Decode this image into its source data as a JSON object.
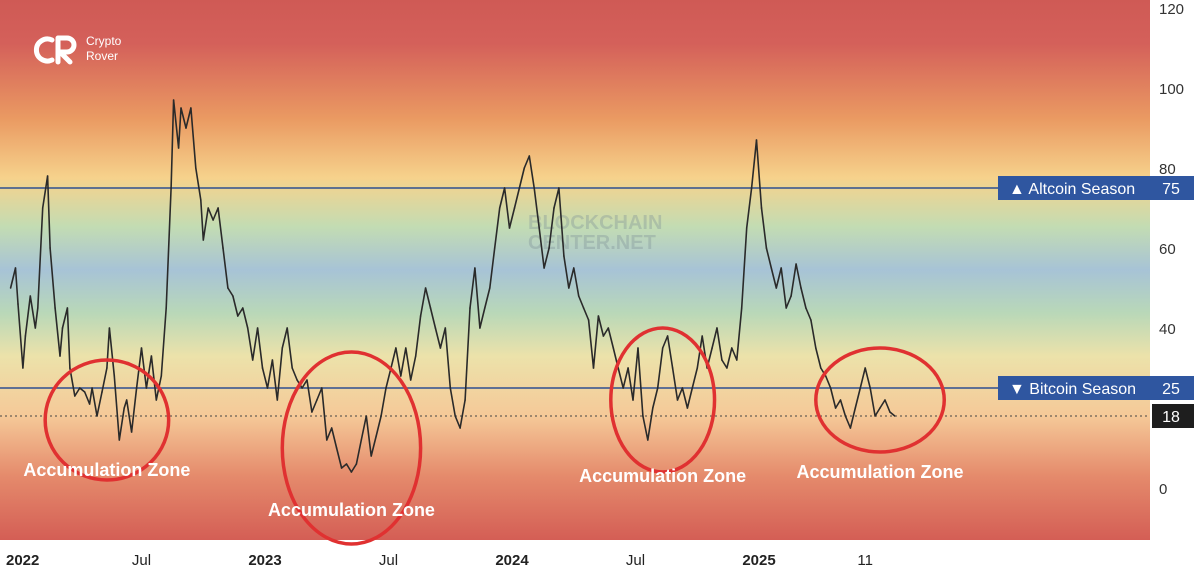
{
  "brand": {
    "line1": "Crypto",
    "line2": "Rover"
  },
  "watermark": {
    "line1": "BLOCKCHAIN",
    "line2": "CENTER.NET"
  },
  "chart_data": {
    "type": "line",
    "title": "",
    "xlabel": "",
    "ylabel": "",
    "ylim": [
      -12,
      120
    ],
    "yticks": [
      0,
      20,
      40,
      60,
      80,
      100,
      120
    ],
    "ytick_labels": [
      "0",
      "",
      "40",
      "60",
      "80",
      "100",
      "120"
    ],
    "x_tick_labels": [
      {
        "t": 2022.0,
        "label": "2022",
        "bold": true
      },
      {
        "t": 2022.5,
        "label": "Jul",
        "bold": false
      },
      {
        "t": 2023.0,
        "label": "2023",
        "bold": true
      },
      {
        "t": 2023.5,
        "label": "Jul",
        "bold": false
      },
      {
        "t": 2024.0,
        "label": "2024",
        "bold": true
      },
      {
        "t": 2024.5,
        "label": "Jul",
        "bold": false
      },
      {
        "t": 2025.0,
        "label": "2025",
        "bold": true
      },
      {
        "t": 2025.43,
        "label": "11",
        "bold": false
      }
    ],
    "series": [
      {
        "values": [
          [
            2021.97,
            50
          ],
          [
            2021.99,
            55
          ],
          [
            2022.0,
            46
          ],
          [
            2022.02,
            30
          ],
          [
            2022.03,
            38
          ],
          [
            2022.05,
            48
          ],
          [
            2022.07,
            40
          ],
          [
            2022.08,
            45
          ],
          [
            2022.1,
            70
          ],
          [
            2022.12,
            78
          ],
          [
            2022.13,
            60
          ],
          [
            2022.15,
            45
          ],
          [
            2022.17,
            33
          ],
          [
            2022.18,
            40
          ],
          [
            2022.2,
            45
          ],
          [
            2022.21,
            30
          ],
          [
            2022.23,
            23
          ],
          [
            2022.25,
            25
          ],
          [
            2022.27,
            24
          ],
          [
            2022.29,
            21
          ],
          [
            2022.3,
            25
          ],
          [
            2022.32,
            18
          ],
          [
            2022.34,
            24
          ],
          [
            2022.36,
            30
          ],
          [
            2022.37,
            40
          ],
          [
            2022.39,
            28
          ],
          [
            2022.41,
            12
          ],
          [
            2022.43,
            20
          ],
          [
            2022.44,
            22
          ],
          [
            2022.46,
            14
          ],
          [
            2022.48,
            25
          ],
          [
            2022.5,
            35
          ],
          [
            2022.52,
            25
          ],
          [
            2022.54,
            33
          ],
          [
            2022.56,
            22
          ],
          [
            2022.58,
            28
          ],
          [
            2022.6,
            45
          ],
          [
            2022.62,
            75
          ],
          [
            2022.63,
            97
          ],
          [
            2022.65,
            85
          ],
          [
            2022.66,
            95
          ],
          [
            2022.68,
            90
          ],
          [
            2022.7,
            95
          ],
          [
            2022.72,
            80
          ],
          [
            2022.74,
            72
          ],
          [
            2022.75,
            62
          ],
          [
            2022.77,
            70
          ],
          [
            2022.79,
            67
          ],
          [
            2022.81,
            70
          ],
          [
            2022.83,
            60
          ],
          [
            2022.85,
            50
          ],
          [
            2022.87,
            48
          ],
          [
            2022.89,
            43
          ],
          [
            2022.91,
            45
          ],
          [
            2022.93,
            40
          ],
          [
            2022.95,
            32
          ],
          [
            2022.97,
            40
          ],
          [
            2022.99,
            30
          ],
          [
            2023.01,
            25
          ],
          [
            2023.03,
            32
          ],
          [
            2023.05,
            22
          ],
          [
            2023.07,
            35
          ],
          [
            2023.09,
            40
          ],
          [
            2023.11,
            30
          ],
          [
            2023.13,
            27
          ],
          [
            2023.15,
            25
          ],
          [
            2023.17,
            27
          ],
          [
            2023.19,
            19
          ],
          [
            2023.21,
            22
          ],
          [
            2023.23,
            25
          ],
          [
            2023.25,
            12
          ],
          [
            2023.27,
            15
          ],
          [
            2023.29,
            10
          ],
          [
            2023.31,
            5
          ],
          [
            2023.33,
            6
          ],
          [
            2023.35,
            4
          ],
          [
            2023.37,
            6
          ],
          [
            2023.39,
            12
          ],
          [
            2023.41,
            18
          ],
          [
            2023.43,
            8
          ],
          [
            2023.45,
            13
          ],
          [
            2023.47,
            18
          ],
          [
            2023.49,
            25
          ],
          [
            2023.51,
            30
          ],
          [
            2023.53,
            35
          ],
          [
            2023.55,
            28
          ],
          [
            2023.57,
            35
          ],
          [
            2023.59,
            27
          ],
          [
            2023.61,
            33
          ],
          [
            2023.63,
            43
          ],
          [
            2023.65,
            50
          ],
          [
            2023.67,
            45
          ],
          [
            2023.69,
            40
          ],
          [
            2023.71,
            35
          ],
          [
            2023.73,
            40
          ],
          [
            2023.75,
            25
          ],
          [
            2023.77,
            18
          ],
          [
            2023.79,
            15
          ],
          [
            2023.81,
            22
          ],
          [
            2023.83,
            45
          ],
          [
            2023.85,
            55
          ],
          [
            2023.87,
            40
          ],
          [
            2023.89,
            45
          ],
          [
            2023.91,
            50
          ],
          [
            2023.93,
            60
          ],
          [
            2023.95,
            70
          ],
          [
            2023.97,
            75
          ],
          [
            2023.99,
            65
          ],
          [
            2024.01,
            70
          ],
          [
            2024.03,
            75
          ],
          [
            2024.05,
            80
          ],
          [
            2024.07,
            83
          ],
          [
            2024.09,
            75
          ],
          [
            2024.11,
            65
          ],
          [
            2024.13,
            55
          ],
          [
            2024.15,
            60
          ],
          [
            2024.17,
            70
          ],
          [
            2024.19,
            75
          ],
          [
            2024.21,
            58
          ],
          [
            2024.23,
            50
          ],
          [
            2024.25,
            55
          ],
          [
            2024.27,
            48
          ],
          [
            2024.29,
            45
          ],
          [
            2024.31,
            42
          ],
          [
            2024.33,
            30
          ],
          [
            2024.35,
            43
          ],
          [
            2024.37,
            38
          ],
          [
            2024.39,
            40
          ],
          [
            2024.41,
            35
          ],
          [
            2024.43,
            30
          ],
          [
            2024.45,
            25
          ],
          [
            2024.47,
            30
          ],
          [
            2024.49,
            22
          ],
          [
            2024.51,
            35
          ],
          [
            2024.53,
            18
          ],
          [
            2024.55,
            12
          ],
          [
            2024.57,
            20
          ],
          [
            2024.59,
            25
          ],
          [
            2024.61,
            35
          ],
          [
            2024.63,
            38
          ],
          [
            2024.65,
            30
          ],
          [
            2024.67,
            22
          ],
          [
            2024.69,
            25
          ],
          [
            2024.71,
            20
          ],
          [
            2024.73,
            25
          ],
          [
            2024.75,
            30
          ],
          [
            2024.77,
            38
          ],
          [
            2024.79,
            30
          ],
          [
            2024.81,
            35
          ],
          [
            2024.83,
            40
          ],
          [
            2024.85,
            32
          ],
          [
            2024.87,
            30
          ],
          [
            2024.89,
            35
          ],
          [
            2024.91,
            32
          ],
          [
            2024.93,
            45
          ],
          [
            2024.95,
            65
          ],
          [
            2024.97,
            75
          ],
          [
            2024.99,
            87
          ],
          [
            2025.01,
            70
          ],
          [
            2025.03,
            60
          ],
          [
            2025.05,
            55
          ],
          [
            2025.07,
            50
          ],
          [
            2025.09,
            55
          ],
          [
            2025.11,
            45
          ],
          [
            2025.13,
            48
          ],
          [
            2025.15,
            56
          ],
          [
            2025.17,
            50
          ],
          [
            2025.19,
            45
          ],
          [
            2025.21,
            42
          ],
          [
            2025.23,
            35
          ],
          [
            2025.25,
            30
          ],
          [
            2025.27,
            28
          ],
          [
            2025.29,
            25
          ],
          [
            2025.31,
            20
          ],
          [
            2025.33,
            22
          ],
          [
            2025.35,
            18
          ],
          [
            2025.37,
            15
          ],
          [
            2025.39,
            20
          ],
          [
            2025.41,
            25
          ],
          [
            2025.43,
            30
          ],
          [
            2025.45,
            25
          ],
          [
            2025.47,
            18
          ],
          [
            2025.49,
            20
          ],
          [
            2025.51,
            22
          ],
          [
            2025.53,
            19
          ],
          [
            2025.55,
            18
          ]
        ]
      }
    ],
    "reference_lines": [
      {
        "y": 75,
        "arrow": "▲",
        "label": "Altcoin Season",
        "value": "75"
      },
      {
        "y": 25,
        "arrow": "▼",
        "label": "Bitcoin Season",
        "value": "25"
      }
    ],
    "current_value": {
      "y": 18,
      "label": "18"
    },
    "annotations": [
      {
        "label": "Accumulation Zone",
        "cx": 2022.36,
        "cy": 17,
        "rx": 0.25,
        "ry": 15,
        "lx": 2022.36,
        "ly": 3
      },
      {
        "label": "Accumulation Zone",
        "cx": 2023.35,
        "cy": 10,
        "rx": 0.28,
        "ry": 24,
        "lx": 2023.35,
        "ly": -7
      },
      {
        "label": "Accumulation Zone",
        "cx": 2024.61,
        "cy": 22,
        "rx": 0.21,
        "ry": 18,
        "lx": 2024.61,
        "ly": 1.5
      },
      {
        "label": "Accumulation Zone",
        "cx": 2025.49,
        "cy": 22,
        "rx": 0.26,
        "ry": 13,
        "lx": 2025.49,
        "ly": 2.5
      }
    ],
    "grid": false,
    "legend": "none",
    "colors": {
      "line": "#2a2a2a",
      "reference_line": "#2f4f8f",
      "label_box": "#2f56a0",
      "current_box": "#1e1e1e",
      "annotation": "#e03131",
      "annotation_text": "#ffffff",
      "axis_band": "#ffffff",
      "gradient": [
        "#cf5a55",
        "#ea9a62",
        "#f6d28c",
        "#b5d6b8",
        "#a7c3d6",
        "#e8dfae",
        "#f5c998",
        "#dd6f5f"
      ]
    }
  }
}
